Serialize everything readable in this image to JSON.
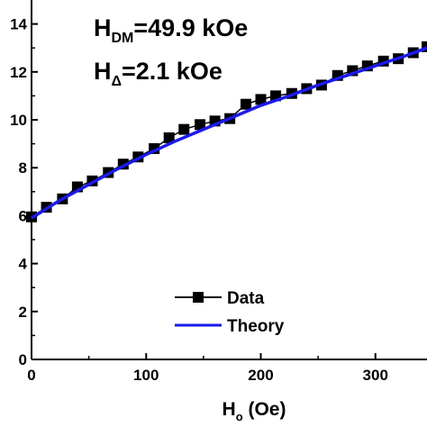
{
  "chart_data": {
    "type": "line",
    "xlabel_main": "H",
    "xlabel_sub": "o",
    "xlabel_rest": " (Oe)",
    "ylabel": "",
    "xlim": [
      0,
      345
    ],
    "ylim": [
      0,
      15
    ],
    "xticks": [
      0,
      100,
      200,
      300
    ],
    "yticks": [
      0,
      2,
      4,
      6,
      8,
      10,
      12,
      14
    ],
    "grid": false,
    "legend_placement": "bottom-right",
    "annotations": [
      {
        "main": "H",
        "sub": "DM",
        "rest": "=49.9 kOe"
      },
      {
        "main": "H",
        "sub": "Δ",
        "rest": "=2.1 kOe"
      }
    ],
    "series": [
      {
        "name": "Data",
        "style": "square-markers-line",
        "color": "#000000",
        "x": [
          0,
          13,
          27,
          40,
          53,
          67,
          80,
          93,
          107,
          120,
          133,
          147,
          160,
          173,
          187,
          200,
          213,
          227,
          240,
          253,
          267,
          280,
          293,
          307,
          320,
          333,
          345
        ],
        "y": [
          5.95,
          6.35,
          6.7,
          7.2,
          7.45,
          7.8,
          8.15,
          8.45,
          8.8,
          9.25,
          9.6,
          9.8,
          9.95,
          10.05,
          10.65,
          10.85,
          11.0,
          11.1,
          11.3,
          11.45,
          11.85,
          12.05,
          12.25,
          12.45,
          12.55,
          12.8,
          13.05
        ]
      },
      {
        "name": "Theory",
        "style": "line",
        "color": "#1a1aee",
        "x": [
          0,
          25,
          50,
          75,
          100,
          125,
          150,
          175,
          200,
          225,
          250,
          275,
          300,
          325,
          345
        ],
        "y": [
          5.9,
          6.65,
          7.3,
          7.95,
          8.55,
          9.1,
          9.6,
          10.1,
          10.6,
          11.0,
          11.45,
          11.85,
          12.25,
          12.65,
          13.0
        ]
      }
    ]
  }
}
